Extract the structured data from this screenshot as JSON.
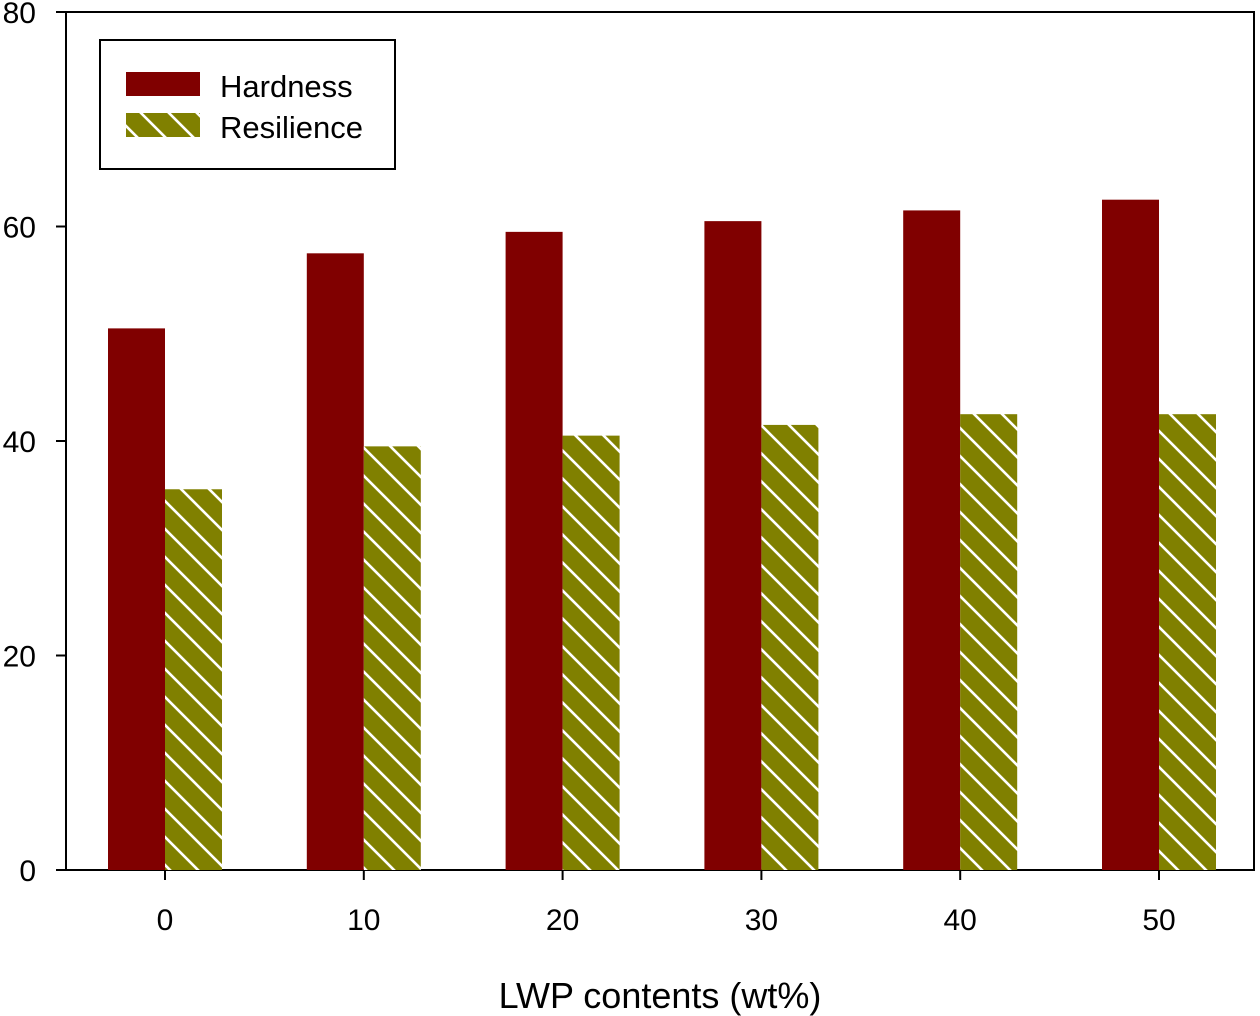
{
  "chart_data": {
    "type": "bar",
    "title": "",
    "xlabel": "LWP contents (wt%)",
    "ylabel": "",
    "categories": [
      "0",
      "10",
      "20",
      "30",
      "40",
      "50"
    ],
    "series": [
      {
        "name": "Hardness",
        "values": [
          50.5,
          57.5,
          59.5,
          60.5,
          61.5,
          62.5
        ],
        "color": "#800000",
        "pattern": "solid"
      },
      {
        "name": "Resilience",
        "values": [
          35.5,
          39.5,
          40.5,
          41.5,
          42.5,
          42.5
        ],
        "color": "#808000",
        "pattern": "hatch"
      }
    ],
    "ylim": [
      0,
      80
    ],
    "yticks": [
      "0",
      "20",
      "40",
      "60",
      "80"
    ],
    "legend_position": "top-left",
    "grid": false
  }
}
